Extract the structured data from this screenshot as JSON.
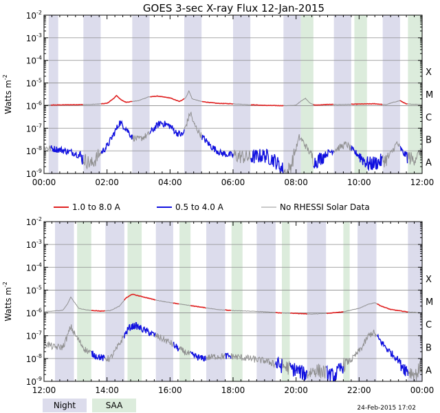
{
  "title": "GOES 3-sec X-ray Flux   12-Jan-2015",
  "ylabel_main": "Watts m",
  "ylabel_sup": "-2",
  "timestamp": "24-Feb-2015 17:02",
  "colors": {
    "long": "#e02020",
    "short": "#1010e0",
    "norhessi": "#909090",
    "night": "#dcdcec",
    "saa": "#dcecdc",
    "grid": "#8a8a8a",
    "axis": "#000000"
  },
  "legend": [
    {
      "label": "1.0 to 8.0 A",
      "color": "#e02020"
    },
    {
      "label": "0.5 to 4.0 A",
      "color": "#1010e0"
    },
    {
      "label": "No RHESSI Solar Data",
      "color": "#909090"
    }
  ],
  "shade_legend": [
    {
      "label": "Night",
      "color": "#dcdcec"
    },
    {
      "label": "SAA",
      "color": "#dcecdc"
    }
  ],
  "chart_data": [
    {
      "type": "line",
      "panel": "top",
      "x_unit": "hours UT",
      "xlim": [
        0,
        12
      ],
      "ylim_log10": [
        -9,
        -2
      ],
      "yscale": "log",
      "x_ticks": [
        "00:00",
        "02:00",
        "04:00",
        "06:00",
        "08:00",
        "10:00",
        "12:00"
      ],
      "y_ticks": [
        {
          "base": "10",
          "exp": "-2"
        },
        {
          "base": "10",
          "exp": "-3"
        },
        {
          "base": "10",
          "exp": "-4"
        },
        {
          "base": "10",
          "exp": "-5"
        },
        {
          "base": "10",
          "exp": "-6"
        },
        {
          "base": "10",
          "exp": "-7"
        },
        {
          "base": "10",
          "exp": "-8"
        },
        {
          "base": "10",
          "exp": "-9"
        }
      ],
      "class_labels": [
        {
          "label": "X",
          "log10": -4
        },
        {
          "label": "M",
          "log10": -5
        },
        {
          "label": "C",
          "log10": -6
        },
        {
          "label": "B",
          "log10": -7
        },
        {
          "label": "A",
          "log10": -8
        }
      ],
      "night": [
        [
          0.15,
          0.45
        ],
        [
          1.25,
          1.8
        ],
        [
          2.8,
          3.35
        ],
        [
          4.45,
          5.0
        ],
        [
          6.0,
          6.55
        ],
        [
          7.6,
          8.15
        ],
        [
          9.2,
          9.75
        ],
        [
          10.75,
          11.3
        ]
      ],
      "saa": [
        [
          8.15,
          8.55
        ],
        [
          9.85,
          10.25
        ],
        [
          11.55,
          12.0
        ]
      ],
      "series": [
        {
          "name": "1.0 to 8.0 A",
          "unit": "log10 W/m^2",
          "noise": 0.02,
          "points": [
            [
              0,
              -5.98
            ],
            [
              1,
              -5.96
            ],
            [
              1.5,
              -5.95
            ],
            [
              2.0,
              -5.9
            ],
            [
              2.2,
              -5.7
            ],
            [
              2.3,
              -5.55
            ],
            [
              2.45,
              -5.75
            ],
            [
              2.6,
              -5.85
            ],
            [
              3.0,
              -5.78
            ],
            [
              3.3,
              -5.62
            ],
            [
              3.6,
              -5.58
            ],
            [
              4.0,
              -5.66
            ],
            [
              4.3,
              -5.82
            ],
            [
              4.5,
              -5.65
            ],
            [
              4.6,
              -5.35
            ],
            [
              4.7,
              -5.7
            ],
            [
              5.0,
              -5.82
            ],
            [
              5.5,
              -5.9
            ],
            [
              6.0,
              -5.92
            ],
            [
              6.5,
              -5.96
            ],
            [
              7.0,
              -5.99
            ],
            [
              7.5,
              -6.0
            ],
            [
              7.8,
              -6.0
            ],
            [
              8.0,
              -5.98
            ],
            [
              8.15,
              -5.8
            ],
            [
              8.3,
              -5.68
            ],
            [
              8.45,
              -5.9
            ],
            [
              8.6,
              -5.98
            ],
            [
              9.0,
              -5.95
            ],
            [
              9.5,
              -5.95
            ],
            [
              10.0,
              -5.93
            ],
            [
              10.5,
              -5.92
            ],
            [
              10.85,
              -5.96
            ],
            [
              11.1,
              -5.85
            ],
            [
              11.3,
              -5.78
            ],
            [
              11.5,
              -5.93
            ],
            [
              12.0,
              -5.95
            ]
          ]
        },
        {
          "name": "0.5 to 4.0 A",
          "unit": "log10 W/m^2",
          "noise": 0.15,
          "points": [
            [
              0,
              -7.85
            ],
            [
              0.5,
              -7.95
            ],
            [
              1.0,
              -8.1
            ],
            [
              1.3,
              -8.4
            ],
            [
              1.5,
              -8.6
            ],
            [
              1.8,
              -8.1
            ],
            [
              2.0,
              -7.8
            ],
            [
              2.2,
              -7.3
            ],
            [
              2.4,
              -6.75
            ],
            [
              2.6,
              -7.0
            ],
            [
              2.8,
              -7.4
            ],
            [
              3.0,
              -7.5
            ],
            [
              3.3,
              -7.3
            ],
            [
              3.5,
              -7.0
            ],
            [
              3.7,
              -6.75
            ],
            [
              4.0,
              -6.9
            ],
            [
              4.2,
              -7.2
            ],
            [
              4.4,
              -7.3
            ],
            [
              4.55,
              -6.7
            ],
            [
              4.65,
              -6.3
            ],
            [
              4.75,
              -6.8
            ],
            [
              5.0,
              -7.35
            ],
            [
              5.3,
              -7.8
            ],
            [
              5.6,
              -8.1
            ],
            [
              6.0,
              -8.2
            ],
            [
              6.5,
              -8.3
            ],
            [
              7.0,
              -8.2
            ],
            [
              7.3,
              -8.4
            ],
            [
              7.5,
              -8.7
            ],
            [
              7.7,
              -9.0
            ],
            [
              7.85,
              -8.6
            ],
            [
              8.0,
              -7.9
            ],
            [
              8.1,
              -7.4
            ],
            [
              8.2,
              -7.55
            ],
            [
              8.4,
              -8.0
            ],
            [
              8.6,
              -8.5
            ],
            [
              9.0,
              -8.1
            ],
            [
              9.3,
              -7.9
            ],
            [
              9.6,
              -7.7
            ],
            [
              9.8,
              -8.0
            ],
            [
              10.0,
              -8.2
            ],
            [
              10.3,
              -8.6
            ],
            [
              10.6,
              -8.5
            ],
            [
              10.9,
              -8.35
            ],
            [
              11.1,
              -7.9
            ],
            [
              11.2,
              -7.65
            ],
            [
              11.4,
              -8.1
            ],
            [
              11.7,
              -8.4
            ],
            [
              12.0,
              -7.95
            ]
          ]
        }
      ],
      "blue_segments": [
        [
          0.2,
          1.25
        ],
        [
          1.8,
          2.8
        ],
        [
          3.35,
          4.45
        ],
        [
          5.0,
          6.0
        ],
        [
          6.55,
          7.6
        ],
        [
          8.55,
          9.2
        ],
        [
          9.75,
          10.75
        ],
        [
          11.3,
          11.55
        ]
      ]
    },
    {
      "type": "line",
      "panel": "bottom",
      "x_unit": "hours UT",
      "xlim": [
        12,
        24
      ],
      "ylim_log10": [
        -9,
        -2
      ],
      "yscale": "log",
      "x_ticks": [
        "12:00",
        "14:00",
        "16:00",
        "18:00",
        "20:00",
        "22:00",
        "00:00"
      ],
      "y_ticks": [
        {
          "base": "10",
          "exp": "-2"
        },
        {
          "base": "10",
          "exp": "-3"
        },
        {
          "base": "10",
          "exp": "-4"
        },
        {
          "base": "10",
          "exp": "-5"
        },
        {
          "base": "10",
          "exp": "-6"
        },
        {
          "base": "10",
          "exp": "-7"
        },
        {
          "base": "10",
          "exp": "-8"
        },
        {
          "base": "10",
          "exp": "-9"
        }
      ],
      "class_labels": [
        {
          "label": "X",
          "log10": -4
        },
        {
          "label": "M",
          "log10": -5
        },
        {
          "label": "C",
          "log10": -6
        },
        {
          "label": "B",
          "log10": -7
        },
        {
          "label": "A",
          "log10": -8
        }
      ],
      "night": [
        [
          12.35,
          12.95
        ],
        [
          13.95,
          14.55
        ],
        [
          15.55,
          16.1
        ],
        [
          17.15,
          17.75
        ],
        [
          18.75,
          19.35
        ],
        [
          20.35,
          20.95
        ],
        [
          21.95,
          22.55
        ],
        [
          23.55,
          24.0
        ]
      ],
      "saa": [
        [
          13.05,
          13.5
        ],
        [
          14.65,
          15.1
        ],
        [
          16.3,
          16.65
        ],
        [
          17.95,
          18.3
        ],
        [
          19.55,
          19.8
        ],
        [
          21.5,
          21.7
        ]
      ],
      "series": [
        {
          "name": "1.0 to 8.0 A",
          "unit": "log10 W/m^2",
          "noise": 0.02,
          "points": [
            [
              12,
              -5.95
            ],
            [
              12.3,
              -5.92
            ],
            [
              12.6,
              -5.88
            ],
            [
              12.75,
              -5.6
            ],
            [
              12.85,
              -5.3
            ],
            [
              12.95,
              -5.5
            ],
            [
              13.1,
              -5.8
            ],
            [
              13.4,
              -5.88
            ],
            [
              13.8,
              -5.92
            ],
            [
              14.1,
              -5.9
            ],
            [
              14.4,
              -5.7
            ],
            [
              14.6,
              -5.35
            ],
            [
              14.8,
              -5.18
            ],
            [
              15.0,
              -5.25
            ],
            [
              15.3,
              -5.35
            ],
            [
              15.6,
              -5.45
            ],
            [
              16.0,
              -5.55
            ],
            [
              16.5,
              -5.65
            ],
            [
              17.0,
              -5.75
            ],
            [
              17.5,
              -5.85
            ],
            [
              18.0,
              -5.9
            ],
            [
              18.5,
              -5.92
            ],
            [
              19.0,
              -5.95
            ],
            [
              19.5,
              -6.0
            ],
            [
              20.0,
              -6.02
            ],
            [
              20.5,
              -6.05
            ],
            [
              21.0,
              -6.02
            ],
            [
              21.5,
              -5.95
            ],
            [
              22.0,
              -5.8
            ],
            [
              22.3,
              -5.62
            ],
            [
              22.5,
              -5.55
            ],
            [
              22.7,
              -5.7
            ],
            [
              23.0,
              -5.85
            ],
            [
              23.5,
              -5.95
            ],
            [
              24.0,
              -6.0
            ]
          ]
        },
        {
          "name": "0.5 to 4.0 A",
          "unit": "log10 W/m^2",
          "noise": 0.15,
          "points": [
            [
              12,
              -7.3
            ],
            [
              12.3,
              -7.5
            ],
            [
              12.6,
              -7.5
            ],
            [
              12.75,
              -7.0
            ],
            [
              12.85,
              -6.6
            ],
            [
              13.0,
              -7.0
            ],
            [
              13.3,
              -7.6
            ],
            [
              13.6,
              -7.85
            ],
            [
              13.9,
              -8.0
            ],
            [
              14.1,
              -8.0
            ],
            [
              14.3,
              -7.6
            ],
            [
              14.5,
              -7.1
            ],
            [
              14.7,
              -6.65
            ],
            [
              14.9,
              -6.55
            ],
            [
              15.1,
              -6.7
            ],
            [
              15.4,
              -6.9
            ],
            [
              15.7,
              -7.1
            ],
            [
              16.0,
              -7.3
            ],
            [
              16.3,
              -7.6
            ],
            [
              16.6,
              -7.8
            ],
            [
              17.0,
              -8.0
            ],
            [
              17.5,
              -7.9
            ],
            [
              18.0,
              -7.9
            ],
            [
              18.5,
              -8.0
            ],
            [
              19.0,
              -8.1
            ],
            [
              19.5,
              -8.3
            ],
            [
              20.0,
              -8.5
            ],
            [
              20.3,
              -8.7
            ],
            [
              20.6,
              -8.5
            ],
            [
              20.9,
              -8.6
            ],
            [
              21.2,
              -8.8
            ],
            [
              21.5,
              -8.3
            ],
            [
              21.8,
              -8.0
            ],
            [
              22.1,
              -7.5
            ],
            [
              22.3,
              -7.0
            ],
            [
              22.45,
              -6.85
            ],
            [
              22.6,
              -7.1
            ],
            [
              22.9,
              -7.6
            ],
            [
              23.2,
              -8.0
            ],
            [
              23.5,
              -8.5
            ],
            [
              23.8,
              -8.7
            ],
            [
              24.0,
              -8.3
            ]
          ]
        }
      ],
      "blue_segments": [
        [
          13.5,
          13.95
        ],
        [
          14.55,
          15.55
        ],
        [
          16.1,
          16.3
        ],
        [
          16.65,
          17.15
        ],
        [
          17.75,
          17.95
        ],
        [
          19.35,
          19.55
        ],
        [
          19.8,
          20.35
        ],
        [
          20.95,
          21.5
        ],
        [
          22.55,
          23.55
        ]
      ]
    }
  ]
}
